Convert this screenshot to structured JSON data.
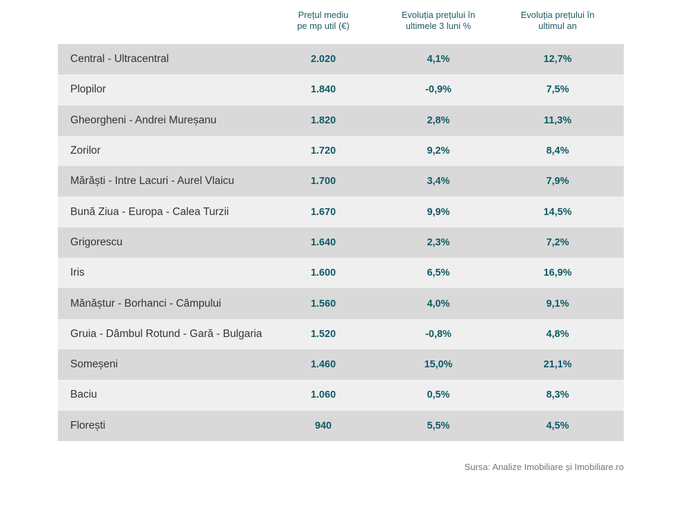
{
  "header": {
    "col_price": [
      "Prețul mediu",
      "pe mp util (€)"
    ],
    "col_3m": [
      "Evoluția prețului în",
      "ultimele 3 luni %"
    ],
    "col_1y": [
      "Evoluția prețului în",
      "ultimul an"
    ]
  },
  "rows": [
    {
      "name": "Central - Ultracentral",
      "price": "2.020",
      "m3": "4,1%",
      "y1": "12,7%"
    },
    {
      "name": "Plopilor",
      "price": "1.840",
      "m3": "-0,9%",
      "y1": "7,5%"
    },
    {
      "name": "Gheorgheni - Andrei Mureșanu",
      "price": "1.820",
      "m3": "2,8%",
      "y1": "11,3%"
    },
    {
      "name": "Zorilor",
      "price": "1.720",
      "m3": "9,2%",
      "y1": "8,4%"
    },
    {
      "name": "Mărăști - Intre Lacuri - Aurel Vlaicu",
      "price": "1.700",
      "m3": "3,4%",
      "y1": "7,9%"
    },
    {
      "name": "Bună Ziua - Europa - Calea Turzii",
      "price": "1.670",
      "m3": "9,9%",
      "y1": "14,5%"
    },
    {
      "name": "Grigorescu",
      "price": "1.640",
      "m3": "2,3%",
      "y1": "7,2%"
    },
    {
      "name": "Iris",
      "price": "1.600",
      "m3": "6,5%",
      "y1": "16,9%"
    },
    {
      "name": "Mănăștur - Borhanci - Câmpului",
      "price": "1.560",
      "m3": "4,0%",
      "y1": "9,1%"
    },
    {
      "name": "Gruia - Dâmbul Rotund - Gară - Bulgaria",
      "price": "1.520",
      "m3": "-0,8%",
      "y1": "4,8%"
    },
    {
      "name": "Someșeni",
      "price": "1.460",
      "m3": "15,0%",
      "y1": "21,1%"
    },
    {
      "name": "Baciu",
      "price": "1.060",
      "m3": "0,5%",
      "y1": "8,3%"
    },
    {
      "name": "Florești",
      "price": "940",
      "m3": "5,5%",
      "y1": "4,5%"
    }
  ],
  "source": "Sursa: Analize Imobiliare și Imobiliare.ro",
  "colors": {
    "row_dark": "#d9d9d9",
    "row_light": "#efefef",
    "value_text": "#0f5a66"
  }
}
